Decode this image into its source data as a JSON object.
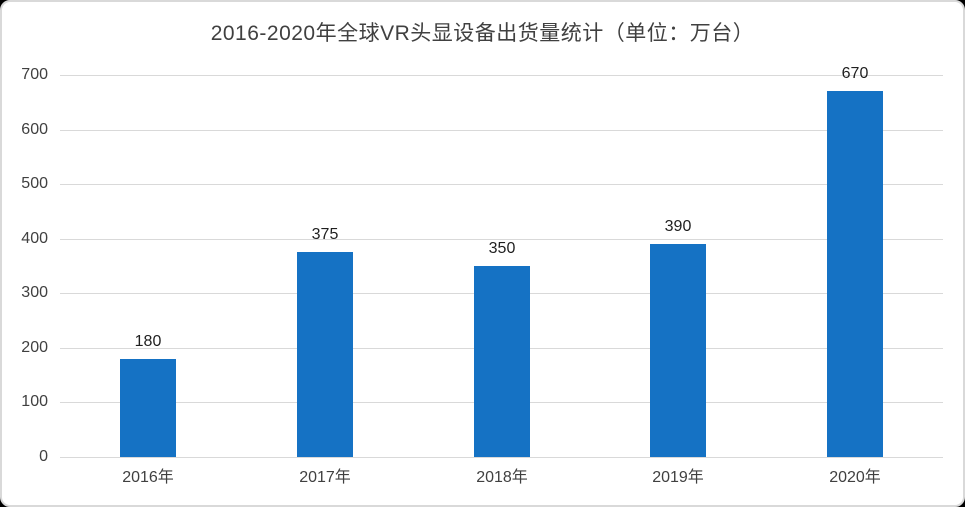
{
  "chart_data": {
    "type": "bar",
    "title": "2016-2020年全球VR头显设备出货量统计（单位：万台）",
    "categories": [
      "2016年",
      "2017年",
      "2018年",
      "2019年",
      "2020年"
    ],
    "values": [
      180,
      375,
      350,
      390,
      670
    ],
    "xlabel": "",
    "ylabel": "",
    "ylim": [
      0,
      700
    ],
    "ytick_interval": 100,
    "ytick_labels": [
      "0",
      "100",
      "200",
      "300",
      "400",
      "500",
      "600",
      "700"
    ],
    "grid": true,
    "legend_position": "none",
    "bar_color": "#1572C4"
  },
  "colors": {
    "bar": "#1572C4",
    "gridline": "#D9D9D9",
    "title_text": "#404040",
    "axis_text": "#404040",
    "value_text": "#1F1F1F",
    "card_background": "#FFFFFF",
    "card_border": "#D9D9D9"
  }
}
